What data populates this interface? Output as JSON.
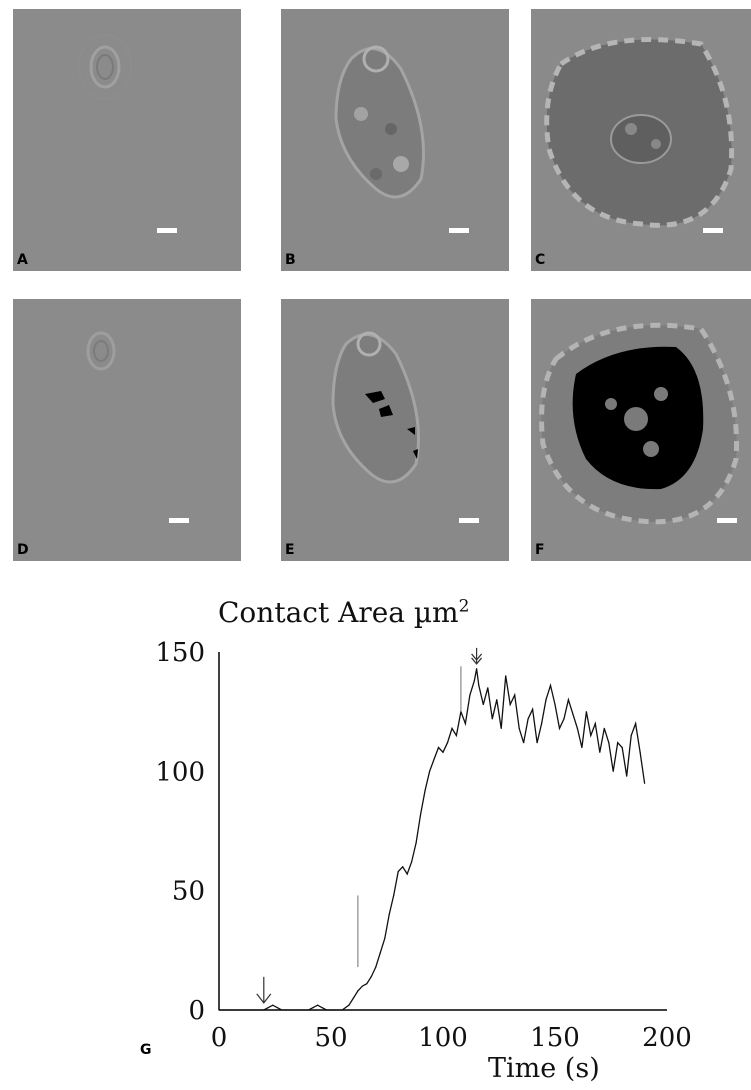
{
  "panels": [
    {
      "label": "A"
    },
    {
      "label": "B"
    },
    {
      "label": "C"
    },
    {
      "label": "D"
    },
    {
      "label": "E"
    },
    {
      "label": "F"
    }
  ],
  "chart_label": "G",
  "chart_data": {
    "type": "line",
    "title": "Contact Area µm",
    "title_sup": "2",
    "xlabel": "Time (s)",
    "ylabel": "",
    "xlim": [
      0,
      200
    ],
    "ylim": [
      0,
      150
    ],
    "xticks": [
      "0",
      "50",
      "100",
      "150",
      "200"
    ],
    "yticks": [
      "0",
      "50",
      "100",
      "150"
    ],
    "grid": false,
    "annotations": [
      {
        "type": "arrow",
        "label": "down-arrow",
        "x": 20,
        "y": 3
      },
      {
        "type": "double-arrow",
        "label": "double-down-arrow",
        "x": 115,
        "y": 145
      },
      {
        "type": "marker-line",
        "x": 62,
        "y_range": [
          18,
          48
        ]
      },
      {
        "type": "marker-line",
        "x": 108,
        "y_range": [
          125,
          144
        ]
      }
    ],
    "series": [
      {
        "x": [
          0,
          5,
          10,
          15,
          20,
          22,
          24,
          26,
          28,
          30,
          35,
          40,
          42,
          44,
          46,
          48,
          50,
          52,
          55,
          58,
          60,
          62,
          64,
          66,
          68,
          70,
          72,
          74,
          76,
          78,
          80,
          82,
          84,
          86,
          88,
          90,
          92,
          94,
          96,
          98,
          100,
          102,
          104,
          106,
          108,
          110,
          112,
          114,
          115,
          116,
          118,
          120,
          122,
          124,
          126,
          128,
          130,
          132,
          134,
          136,
          138,
          140,
          142,
          144,
          146,
          148,
          150,
          152,
          154,
          156,
          158,
          160,
          162,
          164,
          166,
          168,
          170,
          172,
          174,
          176,
          178,
          180,
          182,
          184,
          186,
          188,
          190
        ],
        "y": [
          0,
          0,
          0,
          0,
          0,
          1,
          2,
          1,
          0,
          0,
          0,
          0,
          1,
          2,
          1,
          0,
          0,
          0,
          0,
          2,
          5,
          8,
          10,
          11,
          14,
          18,
          24,
          30,
          40,
          48,
          58,
          60,
          57,
          62,
          70,
          82,
          92,
          100,
          105,
          110,
          108,
          112,
          118,
          115,
          125,
          120,
          132,
          138,
          143,
          136,
          128,
          135,
          122,
          130,
          118,
          140,
          128,
          132,
          118,
          112,
          122,
          126,
          112,
          120,
          130,
          136,
          128,
          118,
          122,
          130,
          124,
          118,
          110,
          125,
          115,
          120,
          108,
          118,
          112,
          100,
          112,
          110,
          98,
          115,
          120,
          108,
          95
        ]
      }
    ]
  }
}
